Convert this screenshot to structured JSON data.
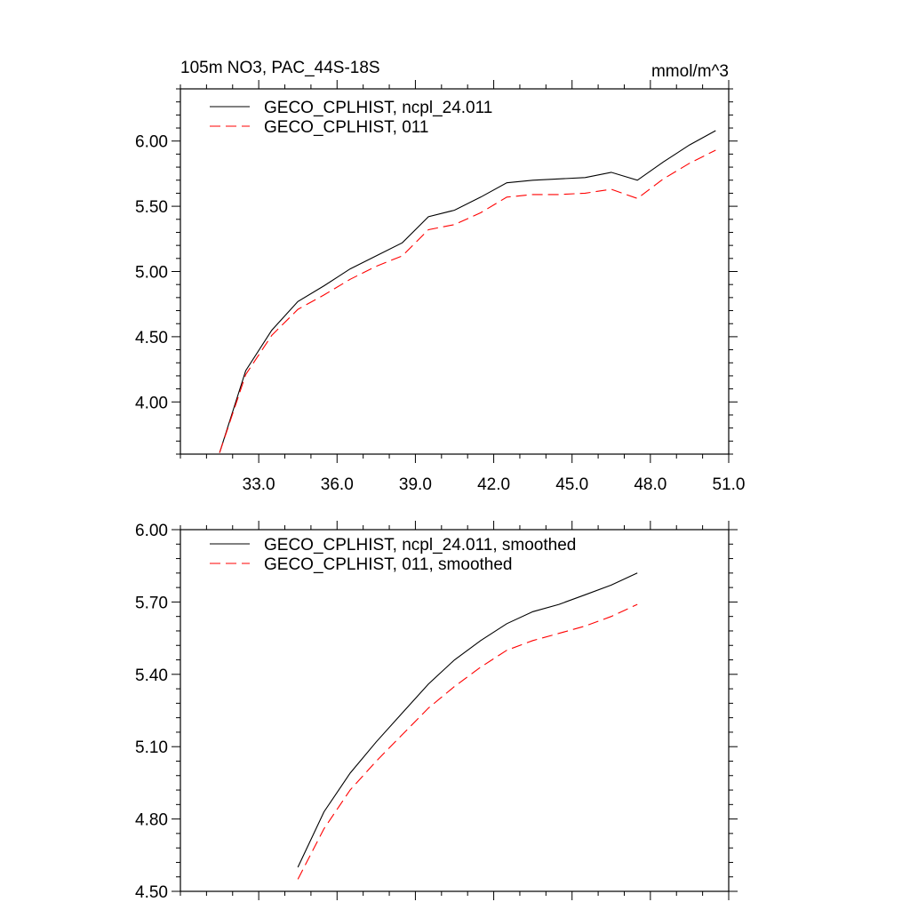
{
  "chart_data": [
    {
      "type": "line",
      "title": "105m NO3, PAC_44S-18S",
      "units": "mmol/m^3",
      "xlim": [
        30,
        51
      ],
      "ylim": [
        3.6,
        6.4
      ],
      "x_ticks": [
        33,
        36,
        39,
        42,
        45,
        48,
        51
      ],
      "x_tick_labels": [
        "33.0",
        "36.0",
        "39.0",
        "42.0",
        "45.0",
        "48.0",
        "51.0"
      ],
      "y_ticks": [
        4.0,
        4.5,
        5.0,
        5.5,
        6.0
      ],
      "y_tick_labels": [
        "4.00",
        "4.50",
        "5.00",
        "5.50",
        "6.00"
      ],
      "legend_position": "top-left",
      "x": [
        31.5,
        32.5,
        33.5,
        34.5,
        35.5,
        36.5,
        37.5,
        38.5,
        39.5,
        40.5,
        41.5,
        42.5,
        43.5,
        44.5,
        45.5,
        46.5,
        47.5,
        48.5,
        49.5,
        50.5
      ],
      "series": [
        {
          "name": "GECO_CPLHIST, ncpl_24.011",
          "color": "#000000",
          "dash": "solid",
          "values": [
            3.61,
            4.24,
            4.55,
            4.77,
            4.89,
            5.02,
            5.12,
            5.22,
            5.42,
            5.47,
            5.57,
            5.68,
            5.7,
            5.71,
            5.72,
            5.76,
            5.7,
            5.84,
            5.97,
            6.08
          ]
        },
        {
          "name": "GECO_CPLHIST, 011",
          "color": "#ff0000",
          "dash": "dashed",
          "values": [
            3.61,
            4.21,
            4.51,
            4.71,
            4.82,
            4.94,
            5.04,
            5.12,
            5.32,
            5.36,
            5.45,
            5.57,
            5.59,
            5.59,
            5.6,
            5.63,
            5.56,
            5.71,
            5.83,
            5.93
          ]
        }
      ]
    },
    {
      "type": "line",
      "xlim": [
        30,
        51
      ],
      "ylim": [
        4.5,
        6.0
      ],
      "x_ticks": [
        33,
        36,
        39,
        42,
        45,
        48,
        51
      ],
      "y_ticks": [
        4.5,
        4.8,
        5.1,
        5.4,
        5.7,
        6.0
      ],
      "y_tick_labels": [
        "4.50",
        "4.80",
        "5.10",
        "5.40",
        "5.70",
        "6.00"
      ],
      "legend_position": "top-left",
      "x": [
        34.5,
        35.5,
        36.5,
        37.5,
        38.5,
        39.5,
        40.5,
        41.5,
        42.5,
        43.5,
        44.5,
        45.5,
        46.5,
        47.5
      ],
      "series": [
        {
          "name": "GECO_CPLHIST, ncpl_24.011, smoothed",
          "color": "#000000",
          "dash": "solid",
          "values": [
            4.6,
            4.83,
            4.99,
            5.12,
            5.24,
            5.36,
            5.46,
            5.54,
            5.61,
            5.66,
            5.69,
            5.73,
            5.77,
            5.82
          ]
        },
        {
          "name": "GECO_CPLHIST, 011, smoothed",
          "color": "#ff0000",
          "dash": "dashed",
          "values": [
            4.55,
            4.76,
            4.92,
            5.04,
            5.15,
            5.26,
            5.35,
            5.43,
            5.5,
            5.54,
            5.57,
            5.6,
            5.64,
            5.69
          ]
        }
      ]
    }
  ]
}
